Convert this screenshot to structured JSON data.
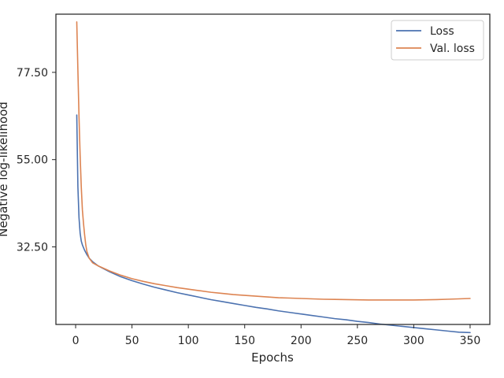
{
  "chart_data": {
    "type": "line",
    "xlabel": "Epochs",
    "ylabel": "Negative log-likelihood",
    "xlim": [
      -17.5,
      367.5
    ],
    "ylim": [
      12.5,
      92.5
    ],
    "x_ticks": [
      0,
      50,
      100,
      150,
      200,
      250,
      300,
      350
    ],
    "x_tick_labels": [
      "0",
      "50",
      "100",
      "150",
      "200",
      "250",
      "300",
      "350"
    ],
    "y_ticks": [
      32.5,
      55.0,
      77.5
    ],
    "y_tick_labels": [
      "32.50",
      "55.00",
      "77.50"
    ],
    "grid": false,
    "legend_position": "top-right",
    "series": [
      {
        "name": "Loss",
        "color": "#4c72b0",
        "x": [
          1,
          2,
          3,
          4,
          5,
          6,
          8,
          10,
          12,
          15,
          20,
          30,
          40,
          50,
          60,
          70,
          80,
          90,
          100,
          110,
          120,
          130,
          140,
          150,
          160,
          170,
          180,
          190,
          200,
          210,
          220,
          230,
          240,
          250,
          260,
          270,
          280,
          290,
          300,
          310,
          320,
          330,
          340,
          350
        ],
        "y": [
          66.5,
          48.0,
          40.0,
          36.0,
          34.0,
          33.0,
          31.6,
          30.5,
          29.6,
          28.7,
          27.6,
          26.1,
          24.8,
          23.8,
          22.9,
          22.1,
          21.4,
          20.7,
          20.1,
          19.5,
          18.9,
          18.4,
          17.9,
          17.4,
          16.9,
          16.5,
          16.0,
          15.6,
          15.2,
          14.8,
          14.4,
          14.0,
          13.7,
          13.3,
          13.0,
          12.6,
          12.3,
          12.0,
          11.7,
          11.4,
          11.1,
          10.8,
          10.5,
          10.4
        ]
      },
      {
        "name": "Val. loss",
        "color": "#dd8452",
        "x": [
          1,
          2,
          3,
          4,
          5,
          6,
          7,
          8,
          9,
          10,
          12,
          15,
          20,
          30,
          40,
          50,
          60,
          70,
          80,
          90,
          100,
          110,
          120,
          130,
          140,
          150,
          160,
          170,
          180,
          190,
          200,
          210,
          220,
          230,
          240,
          250,
          260,
          270,
          280,
          290,
          300,
          310,
          320,
          330,
          340,
          350
        ],
        "y": [
          90.5,
          78.0,
          66.0,
          56.0,
          48.0,
          42.0,
          38.5,
          35.5,
          33.0,
          31.3,
          29.6,
          28.4,
          27.6,
          26.3,
          25.2,
          24.3,
          23.6,
          23.0,
          22.5,
          22.0,
          21.6,
          21.2,
          20.8,
          20.5,
          20.2,
          20.0,
          19.8,
          19.6,
          19.4,
          19.3,
          19.2,
          19.1,
          19.0,
          18.95,
          18.9,
          18.85,
          18.8,
          18.8,
          18.8,
          18.8,
          18.8,
          18.85,
          18.9,
          19.0,
          19.1,
          19.2
        ]
      }
    ]
  }
}
